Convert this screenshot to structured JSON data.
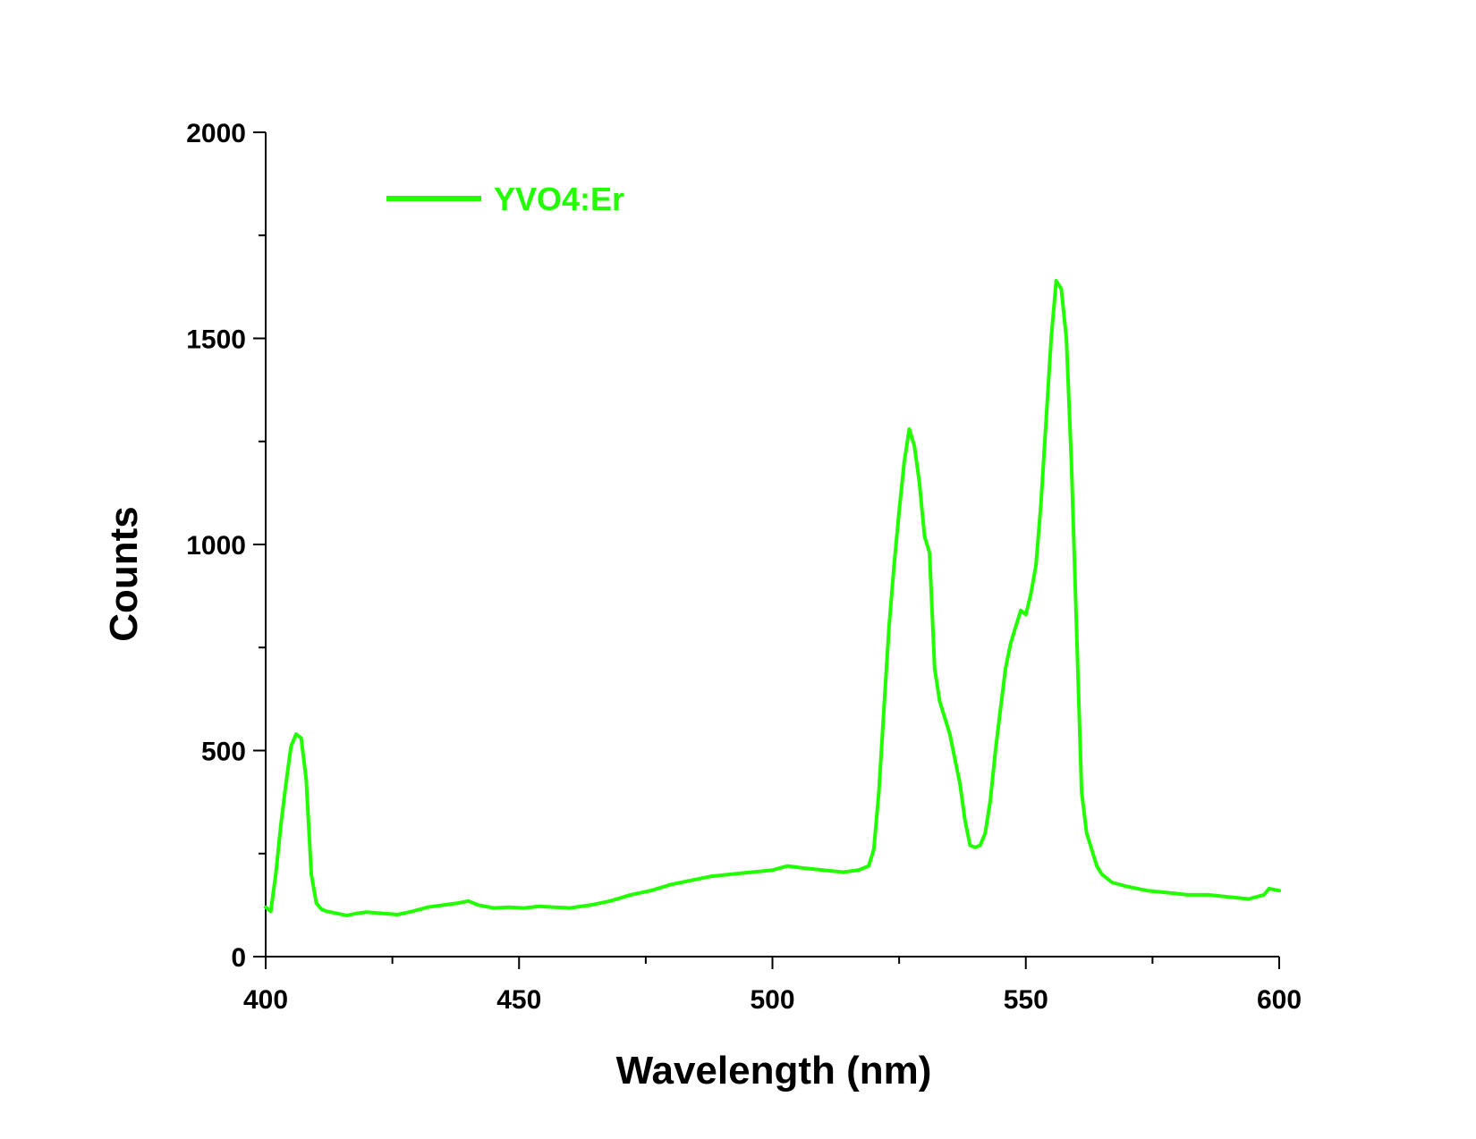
{
  "chart_data": {
    "type": "line",
    "xlabel": "Wavelength (nm)",
    "ylabel": "Counts",
    "xlim": [
      400,
      600
    ],
    "ylim": [
      0,
      2000
    ],
    "x_ticks": [
      400,
      450,
      500,
      550,
      600
    ],
    "y_ticks": [
      0,
      500,
      1000,
      1500,
      2000
    ],
    "x_tick_labels": [
      "400",
      "450",
      "500",
      "550",
      "600"
    ],
    "y_tick_labels": [
      "0",
      "500",
      "1000",
      "1500",
      "2000"
    ],
    "x_minor_ticks": [
      425,
      475,
      525,
      575
    ],
    "y_minor_ticks": [
      250,
      750,
      1250,
      1750
    ],
    "grid": false,
    "legend_position": "top-left",
    "series": [
      {
        "name": "YVO4:Er",
        "color": "#22ff00",
        "x": [
          400,
          401,
          402,
          403,
          404,
          405,
          406,
          407,
          408,
          409,
          410,
          411,
          412,
          414,
          416,
          418,
          420,
          423,
          426,
          429,
          432,
          435,
          438,
          440,
          442,
          445,
          448,
          451,
          454,
          457,
          460,
          464,
          468,
          472,
          476,
          480,
          484,
          488,
          492,
          496,
          500,
          503,
          506,
          510,
          514,
          517,
          519,
          520,
          521,
          522,
          523,
          524,
          525,
          526,
          527,
          528,
          529,
          530,
          531,
          532,
          533,
          534,
          535,
          536,
          537,
          538,
          539,
          540,
          541,
          542,
          543,
          544,
          545,
          546,
          547,
          548,
          549,
          550,
          551,
          552,
          553,
          554,
          555,
          556,
          557,
          558,
          559,
          560,
          561,
          562,
          563,
          564,
          565,
          567,
          570,
          574,
          578,
          582,
          586,
          590,
          594,
          597,
          598,
          600
        ],
        "y": [
          120,
          110,
          200,
          320,
          420,
          510,
          540,
          530,
          430,
          200,
          130,
          115,
          110,
          105,
          100,
          105,
          108,
          105,
          102,
          110,
          120,
          125,
          130,
          135,
          125,
          118,
          120,
          118,
          122,
          120,
          118,
          125,
          135,
          150,
          160,
          175,
          185,
          195,
          200,
          205,
          210,
          220,
          215,
          210,
          205,
          210,
          220,
          260,
          400,
          600,
          800,
          950,
          1080,
          1200,
          1280,
          1240,
          1150,
          1020,
          980,
          700,
          620,
          580,
          540,
          480,
          420,
          330,
          270,
          265,
          270,
          300,
          380,
          500,
          600,
          700,
          760,
          800,
          840,
          830,
          880,
          950,
          1100,
          1300,
          1500,
          1640,
          1620,
          1500,
          1200,
          800,
          400,
          300,
          260,
          220,
          200,
          180,
          170,
          160,
          155,
          150,
          150,
          145,
          140,
          150,
          165,
          160
        ]
      }
    ]
  }
}
